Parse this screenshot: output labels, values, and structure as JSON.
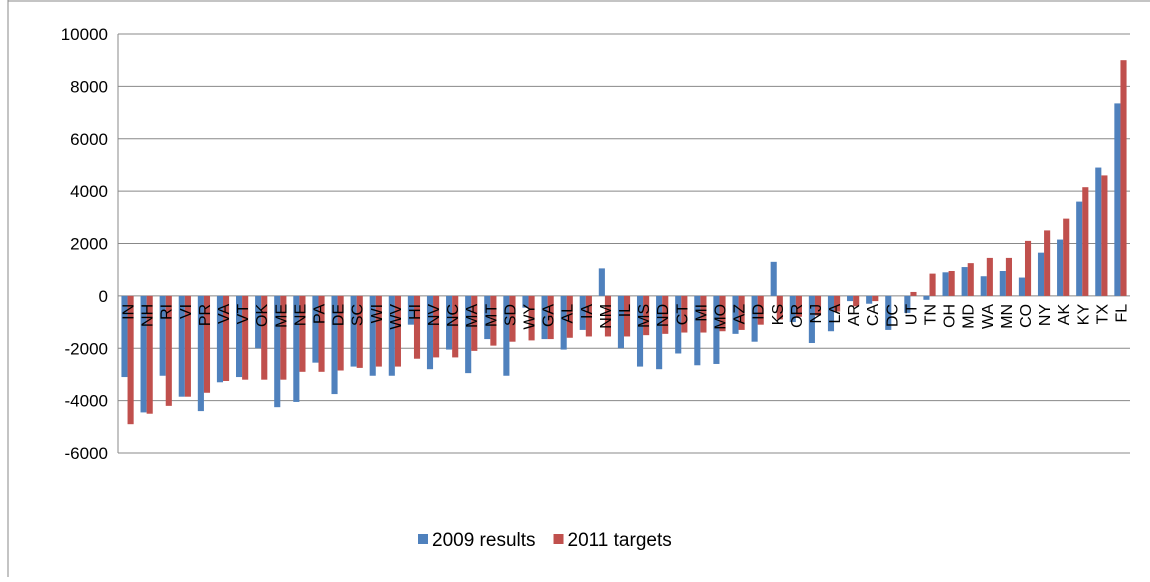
{
  "chart_data": {
    "type": "bar",
    "categories": [
      "IN",
      "NH",
      "RI",
      "VI",
      "PR",
      "VA",
      "VT",
      "OK",
      "ME",
      "NE",
      "PA",
      "DE",
      "SC",
      "WI",
      "WV",
      "HI",
      "NV",
      "NC",
      "MA",
      "MT",
      "SD",
      "WY",
      "GA",
      "AL",
      "IA",
      "NM",
      "IL",
      "MS",
      "ND",
      "CT",
      "MI",
      "MO",
      "AZ",
      "ID",
      "KS",
      "OR",
      "NJ",
      "LA",
      "AR",
      "CA",
      "DC",
      "UT",
      "TN",
      "OH",
      "MD",
      "WA",
      "MN",
      "CO",
      "NY",
      "AK",
      "KY",
      "TX",
      "FL"
    ],
    "series": [
      {
        "name": "2009 results",
        "color": "#4f81bd",
        "values": [
          -3100,
          -4450,
          -3050,
          -3850,
          -4400,
          -3300,
          -3100,
          -2000,
          -4250,
          -4050,
          -2550,
          -3750,
          -2700,
          -3050,
          -3050,
          -1100,
          -2800,
          -2050,
          -2950,
          -1650,
          -3050,
          -450,
          -1650,
          -2050,
          -1300,
          1050,
          -2000,
          -2700,
          -2800,
          -2200,
          -2650,
          -2600,
          -1450,
          -1750,
          1300,
          -1000,
          -1800,
          -1350,
          -200,
          -300,
          -1300,
          -650,
          -150,
          900,
          1100,
          750,
          950,
          700,
          1650,
          2150,
          3600,
          4900,
          7350
        ]
      },
      {
        "name": "2011 targets",
        "color": "#c0504d",
        "values": [
          -4900,
          -4500,
          -4200,
          -3850,
          -3700,
          -3250,
          -3200,
          -3200,
          -3200,
          -2900,
          -2900,
          -2850,
          -2750,
          -2700,
          -2700,
          -2400,
          -2350,
          -2350,
          -2100,
          -1900,
          -1750,
          -1700,
          -1650,
          -1600,
          -1550,
          -1550,
          -1550,
          -1500,
          -1450,
          -1400,
          -1400,
          -1350,
          -1300,
          -1100,
          -900,
          -800,
          -750,
          -600,
          -400,
          -200,
          0,
          150,
          850,
          950,
          1250,
          1450,
          1450,
          2100,
          2500,
          2950,
          4150,
          4600,
          9000
        ]
      }
    ],
    "ylim": [
      -6000,
      10000
    ],
    "yticks": [
      -6000,
      -4000,
      -2000,
      0,
      2000,
      4000,
      6000,
      8000,
      10000
    ],
    "grid": true,
    "legend": "bottom"
  }
}
